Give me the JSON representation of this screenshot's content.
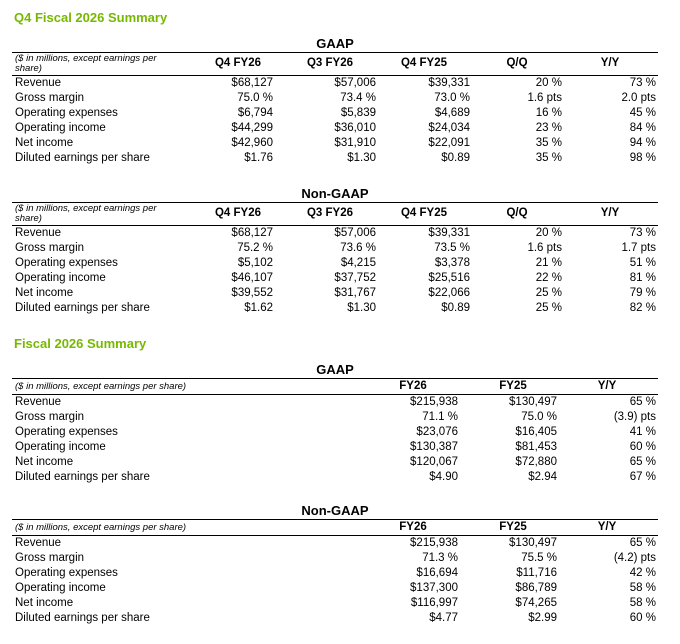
{
  "sections": [
    {
      "title": "Q4 Fiscal 2026 Summary",
      "tables": [
        {
          "heading": "GAAP",
          "columns": [
            "($ in millions, except earnings per share)",
            "Q4 FY26",
            "Q3 FY26",
            "Q4 FY25",
            "Q/Q",
            "Y/Y"
          ],
          "rows": [
            [
              "Revenue",
              "$68,127",
              "$57,006",
              "$39,331",
              "20 %",
              "73 %"
            ],
            [
              "Gross margin",
              "75.0 %",
              "73.4 %",
              "73.0 %",
              "1.6 pts",
              "2.0 pts"
            ],
            [
              "Operating expenses",
              "$6,794",
              "$5,839",
              "$4,689",
              "16 %",
              "45 %"
            ],
            [
              "Operating income",
              "$44,299",
              "$36,010",
              "$24,034",
              "23 %",
              "84 %"
            ],
            [
              "Net income",
              "$42,960",
              "$31,910",
              "$22,091",
              "35 %",
              "94 %"
            ],
            [
              "Diluted earnings per share",
              "$1.76",
              "$1.30",
              "$0.89",
              "35 %",
              "98 %"
            ]
          ]
        },
        {
          "heading": "Non-GAAP",
          "columns": [
            "($ in millions, except earnings per share)",
            "Q4 FY26",
            "Q3 FY26",
            "Q4 FY25",
            "Q/Q",
            "Y/Y"
          ],
          "rows": [
            [
              "Revenue",
              "$68,127",
              "$57,006",
              "$39,331",
              "20 %",
              "73 %"
            ],
            [
              "Gross margin",
              "75.2 %",
              "73.6 %",
              "73.5 %",
              "1.6 pts",
              "1.7 pts"
            ],
            [
              "Operating expenses",
              "$5,102",
              "$4,215",
              "$3,378",
              "21 %",
              "51 %"
            ],
            [
              "Operating income",
              "$46,107",
              "$37,752",
              "$25,516",
              "22 %",
              "81 %"
            ],
            [
              "Net income",
              "$39,552",
              "$31,767",
              "$22,066",
              "25 %",
              "79 %"
            ],
            [
              "Diluted earnings per share",
              "$1.62",
              "$1.30",
              "$0.89",
              "25 %",
              "82 %"
            ]
          ]
        }
      ]
    },
    {
      "title": "Fiscal 2026 Summary",
      "tables": [
        {
          "heading": "GAAP",
          "columns": [
            "($ in millions, except earnings per share)",
            "FY26",
            "FY25",
            "Y/Y"
          ],
          "rows": [
            [
              "Revenue",
              "$215,938",
              "$130,497",
              "65 %"
            ],
            [
              "Gross margin",
              "71.1 %",
              "75.0 %",
              "(3.9) pts"
            ],
            [
              "Operating expenses",
              "$23,076",
              "$16,405",
              "41 %"
            ],
            [
              "Operating income",
              "$130,387",
              "$81,453",
              "60 %"
            ],
            [
              "Net income",
              "$120,067",
              "$72,880",
              "65 %"
            ],
            [
              "Diluted earnings per share",
              "$4.90",
              "$2.94",
              "67 %"
            ]
          ]
        },
        {
          "heading": "Non-GAAP",
          "columns": [
            "($ in millions, except earnings per share)",
            "FY26",
            "FY25",
            "Y/Y"
          ],
          "rows": [
            [
              "Revenue",
              "$215,938",
              "$130,497",
              "65 %"
            ],
            [
              "Gross margin",
              "71.3 %",
              "75.5 %",
              "(4.2) pts"
            ],
            [
              "Operating expenses",
              "$16,694",
              "$11,716",
              "42 %"
            ],
            [
              "Operating income",
              "$137,300",
              "$86,789",
              "58 %"
            ],
            [
              "Net income",
              "$116,997",
              "$74,265",
              "58 %"
            ],
            [
              "Diluted earnings per share",
              "$4.77",
              "$2.99",
              "60 %"
            ]
          ]
        }
      ]
    }
  ]
}
